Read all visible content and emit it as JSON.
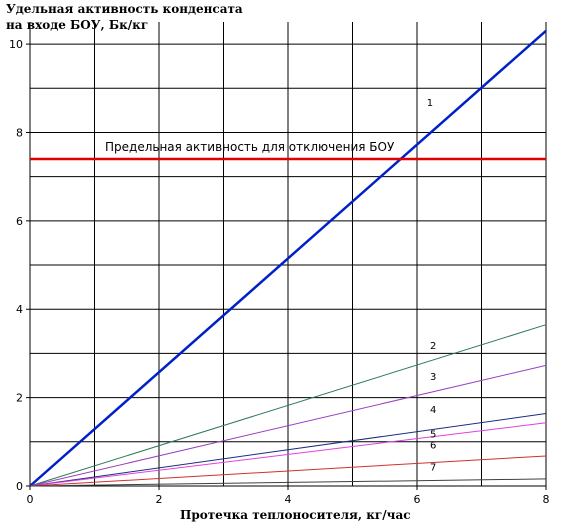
{
  "chart_data": {
    "type": "line",
    "title_lines": [
      "Удельная активность конденсата",
      "на входе БОУ, Бк/кг"
    ],
    "xlabel": "Протечка теплоносителя, кг/час",
    "ylabel": "",
    "xlim": [
      0,
      8
    ],
    "ylim": [
      0,
      10.5
    ],
    "x_ticks": [
      "0",
      "2",
      "4",
      "6",
      "8"
    ],
    "y_ticks": [
      "0",
      "2",
      "4",
      "6",
      "8",
      "10"
    ],
    "x_tick_values": [
      0,
      2,
      4,
      6,
      8
    ],
    "y_tick_values": [
      0,
      2,
      4,
      6,
      8,
      10
    ],
    "grid": true,
    "threshold": {
      "label": "Предельная активность для отключения БОУ",
      "value": 7.4,
      "color": "#e00000"
    },
    "series": [
      {
        "name": "1",
        "x": [
          0,
          8
        ],
        "values": [
          0,
          10.3
        ],
        "color": "#0020c8",
        "label_at": [
          6.2,
          8.6
        ]
      },
      {
        "name": "2",
        "x": [
          0,
          8
        ],
        "values": [
          0,
          3.65
        ],
        "color": "#2f7a57",
        "label_at": [
          6.25,
          3.1
        ]
      },
      {
        "name": "3",
        "x": [
          0,
          8
        ],
        "values": [
          0,
          2.73
        ],
        "color": "#9a3fbf",
        "label_at": [
          6.25,
          2.4
        ]
      },
      {
        "name": "4",
        "x": [
          0,
          8
        ],
        "values": [
          0,
          1.64
        ],
        "color": "#1e2a80",
        "label_at": [
          6.25,
          1.65
        ]
      },
      {
        "name": "5",
        "x": [
          0,
          8
        ],
        "values": [
          0,
          1.43
        ],
        "color": "#e040e0",
        "label_at": [
          6.25,
          1.1
        ]
      },
      {
        "name": "6",
        "x": [
          0,
          8
        ],
        "values": [
          0,
          0.68
        ],
        "color": "#d03030",
        "label_at": [
          6.25,
          0.85
        ]
      },
      {
        "name": "7",
        "x": [
          0,
          8
        ],
        "values": [
          0,
          0.16
        ],
        "color": "#404040",
        "label_at": [
          6.25,
          0.35
        ]
      }
    ]
  }
}
